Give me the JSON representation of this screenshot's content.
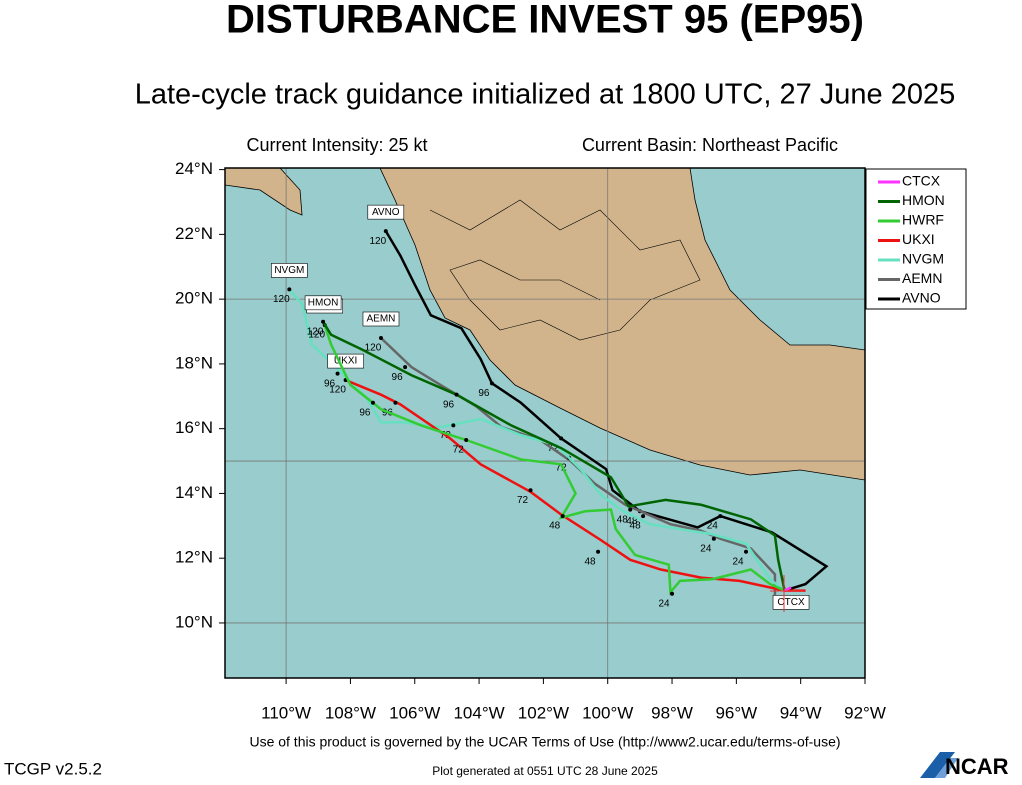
{
  "header": {
    "title": "DISTURBANCE INVEST 95 (EP95)",
    "subtitle": "Late-cycle track guidance initialized at 1800 UTC, 27 June 2025",
    "intensity": "Current Intensity: 25 kt",
    "basin": "Current Basin: Northeast Pacific"
  },
  "map": {
    "xlim": [
      -111.9,
      -92
    ],
    "ylim": [
      8.3,
      24.05
    ],
    "xticks": [
      {
        "value": -110,
        "label": "110°W"
      },
      {
        "value": -108,
        "label": "108°W"
      },
      {
        "value": -106,
        "label": "106°W"
      },
      {
        "value": -104,
        "label": "104°W"
      },
      {
        "value": -102,
        "label": "102°W"
      },
      {
        "value": -100,
        "label": "100°W"
      },
      {
        "value": -98,
        "label": "98°W"
      },
      {
        "value": -96,
        "label": "96°W"
      },
      {
        "value": -94,
        "label": "94°W"
      },
      {
        "value": -92,
        "label": "92°W"
      }
    ],
    "yticks": [
      {
        "value": 10,
        "label": "10°N"
      },
      {
        "value": 12,
        "label": "12°N"
      },
      {
        "value": 14,
        "label": "14°N"
      },
      {
        "value": 16,
        "label": "16°N"
      },
      {
        "value": 18,
        "label": "18°N"
      },
      {
        "value": 20,
        "label": "20°N"
      },
      {
        "value": 22,
        "label": "22°N"
      },
      {
        "value": 24,
        "label": "24°N"
      }
    ],
    "series": [
      {
        "name": "CTCX",
        "color": "#ff33ff",
        "lon": [
          -94.5,
          -94.3
        ],
        "lat": [
          11.0,
          11.1
        ],
        "hours": []
      },
      {
        "name": "HMON",
        "color": "#006400",
        "lon": [
          -94.5,
          -94.7,
          -94.8,
          -95.55,
          -97.1,
          -98.2,
          -99.35,
          -99.9,
          -101.45,
          -103.0,
          -104.7,
          -106.1,
          -107.65,
          -108.6,
          -108.85
        ],
        "lat": [
          11.0,
          11.95,
          12.7,
          13.2,
          13.65,
          13.8,
          13.6,
          14.5,
          15.4,
          16.1,
          17.05,
          17.65,
          18.45,
          18.9,
          19.3
        ],
        "hours": [
          {
            "hour": 48,
            "lon": -99.3,
            "lat": 13.5
          },
          {
            "hour": 96,
            "lon": -104.7,
            "lat": 17.05
          },
          {
            "hour": 120,
            "lon": -108.85,
            "lat": 19.3
          }
        ]
      },
      {
        "name": "HWRF",
        "color": "#33cc33",
        "lon": [
          -94.5,
          -94.95,
          -95.55,
          -96.75,
          -97.75,
          -98.05,
          -98.1,
          -99.15,
          -99.75,
          -99.9,
          -100.7,
          -101.45,
          -101.0,
          -101.45,
          -102.7,
          -104.4,
          -105.8,
          -107.05,
          -108.0,
          -108.6,
          -108.8
        ],
        "lat": [
          11.0,
          11.2,
          11.65,
          11.35,
          11.3,
          10.95,
          11.8,
          12.1,
          12.9,
          13.5,
          13.45,
          13.25,
          14.0,
          14.9,
          15.05,
          15.65,
          16.1,
          16.6,
          17.35,
          18.6,
          19.2
        ],
        "hours": [
          {
            "hour": 24,
            "lon": -98.0,
            "lat": 10.9
          },
          {
            "hour": 48,
            "lon": -101.4,
            "lat": 13.3
          },
          {
            "hour": 72,
            "lon": -104.4,
            "lat": 15.65
          },
          {
            "hour": 96,
            "lon": -107.3,
            "lat": 16.8
          },
          {
            "hour": 120,
            "lon": -108.8,
            "lat": 19.2
          }
        ]
      },
      {
        "name": "UKXI",
        "color": "#ee1111",
        "lon": [
          -93.85,
          -94.5,
          -95.9,
          -97.1,
          -98.35,
          -99.3,
          -100.2,
          -101.45,
          -102.4,
          -103.95,
          -104.9,
          -106.45,
          -107.05,
          -108.15
        ],
        "lat": [
          11.0,
          11.0,
          11.3,
          11.4,
          11.65,
          11.95,
          12.55,
          13.35,
          14.05,
          14.9,
          15.7,
          16.75,
          17.05,
          17.5
        ],
        "hours": [
          {
            "hour": 48,
            "lon": -100.3,
            "lat": 12.2
          },
          {
            "hour": 72,
            "lon": -102.4,
            "lat": 14.1
          },
          {
            "hour": 96,
            "lon": -106.6,
            "lat": 16.8
          },
          {
            "hour": 120,
            "lon": -108.15,
            "lat": 17.5
          }
        ]
      },
      {
        "name": "NVGM",
        "color": "#66e0c0",
        "lon": [
          -94.5,
          -94.95,
          -95.7,
          -96.8,
          -97.75,
          -98.7,
          -99.6,
          -100.2,
          -100.85,
          -101.6,
          -102.7,
          -103.95,
          -105.2,
          -106.4,
          -107.05,
          -107.5,
          -108.45,
          -109.2,
          -109.5,
          -109.9
        ],
        "lat": [
          11.0,
          11.35,
          12.45,
          12.75,
          12.9,
          13.05,
          13.5,
          13.95,
          14.75,
          15.5,
          15.8,
          16.3,
          16.05,
          16.2,
          16.2,
          16.95,
          17.9,
          18.6,
          19.85,
          20.3
        ],
        "hours": [
          {
            "hour": 24,
            "lon": -96.7,
            "lat": 12.6
          },
          {
            "hour": 72,
            "lon": -104.8,
            "lat": 16.1
          },
          {
            "hour": 96,
            "lon": -108.4,
            "lat": 17.7
          },
          {
            "hour": 120,
            "lon": -109.9,
            "lat": 20.3
          }
        ]
      },
      {
        "name": "AEMN",
        "color": "#666666",
        "lon": [
          -94.8,
          -94.8,
          -95.55,
          -96.5,
          -97.1,
          -98.05,
          -99.45,
          -100.4,
          -101.15,
          -102.1,
          -103.3,
          -104.1,
          -105.2,
          -106.1,
          -107.05
        ],
        "lat": [
          10.75,
          11.5,
          12.3,
          12.6,
          12.85,
          13.05,
          13.65,
          14.3,
          15.0,
          15.65,
          16.05,
          16.7,
          17.35,
          17.9,
          18.8
        ],
        "hours": [
          {
            "hour": 24,
            "lon": -95.7,
            "lat": 12.2
          },
          {
            "hour": 48,
            "lon": -98.9,
            "lat": 13.3
          },
          {
            "hour": 72,
            "lon": -101.2,
            "lat": 15.1
          },
          {
            "hour": 96,
            "lon": -106.3,
            "lat": 17.9
          },
          {
            "hour": 120,
            "lon": -107.05,
            "lat": 18.8
          }
        ]
      },
      {
        "name": "AVNO",
        "color": "#000000",
        "lon": [
          -94.5,
          -93.85,
          -93.2,
          -94.9,
          -96.5,
          -97.2,
          -99.0,
          -99.85,
          -100.05,
          -101.45,
          -102.7,
          -103.6,
          -103.95,
          -104.55,
          -105.5,
          -106.0,
          -106.45,
          -106.9
        ],
        "lat": [
          11.0,
          11.2,
          11.75,
          12.8,
          13.3,
          12.95,
          13.45,
          14.1,
          14.75,
          15.7,
          16.8,
          17.4,
          18.15,
          19.1,
          19.5,
          20.45,
          21.35,
          22.1
        ],
        "hours": [
          {
            "hour": 24,
            "lon": -96.5,
            "lat": 13.3
          },
          {
            "hour": 48,
            "lon": -99.0,
            "lat": 13.45
          },
          {
            "hour": 72,
            "lon": -101.45,
            "lat": 15.7
          },
          {
            "hour": 96,
            "lon": -103.6,
            "lat": 17.4
          },
          {
            "hour": 120,
            "lon": -106.9,
            "lat": 22.1
          }
        ]
      }
    ]
  },
  "footer": {
    "terms": "Use of this product is governed by the UCAR Terms of Use (http://www2.ucar.edu/terms-of-use)",
    "version": "TCGP v2.5.2",
    "generated": "Plot generated at 0551 UTC   28 June 2025",
    "logo": "NCAR"
  }
}
